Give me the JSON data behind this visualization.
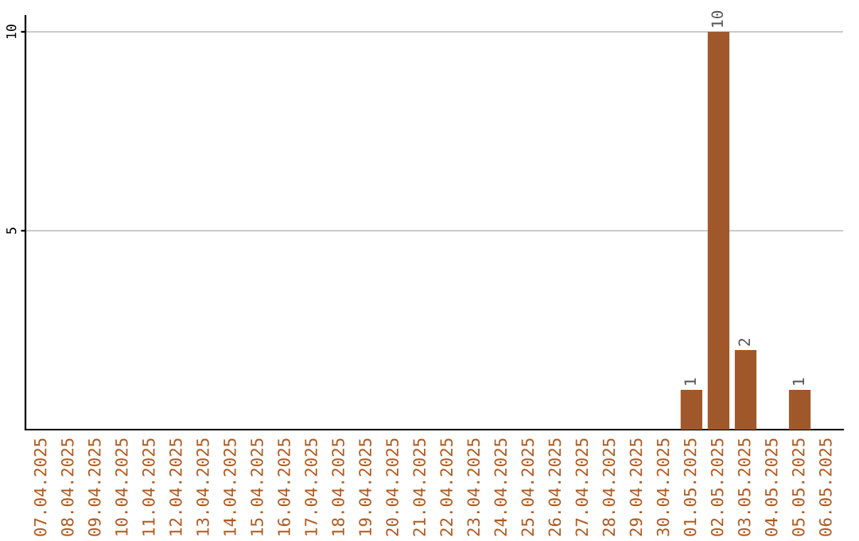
{
  "chart_data": {
    "type": "bar",
    "categories": [
      "07.04.2025",
      "08.04.2025",
      "09.04.2025",
      "10.04.2025",
      "11.04.2025",
      "12.04.2025",
      "13.04.2025",
      "14.04.2025",
      "15.04.2025",
      "16.04.2025",
      "17.04.2025",
      "18.04.2025",
      "19.04.2025",
      "20.04.2025",
      "21.04.2025",
      "22.04.2025",
      "23.04.2025",
      "24.04.2025",
      "25.04.2025",
      "26.04.2025",
      "27.04.2025",
      "28.04.2025",
      "29.04.2025",
      "30.04.2025",
      "01.05.2025",
      "02.05.2025",
      "03.05.2025",
      "04.05.2025",
      "05.05.2025",
      "06.05.2025"
    ],
    "values": [
      0,
      0,
      0,
      0,
      0,
      0,
      0,
      0,
      0,
      0,
      0,
      0,
      0,
      0,
      0,
      0,
      0,
      0,
      0,
      0,
      0,
      0,
      0,
      0,
      1,
      10,
      2,
      0,
      1,
      0
    ],
    "value_labels": [
      null,
      null,
      null,
      null,
      null,
      null,
      null,
      null,
      null,
      null,
      null,
      null,
      null,
      null,
      null,
      null,
      null,
      null,
      null,
      null,
      null,
      null,
      null,
      null,
      "1",
      "10",
      "2",
      null,
      "1",
      null
    ],
    "color": "#a0582a",
    "ylim": [
      0,
      10.4
    ],
    "yticks": [
      5,
      10
    ],
    "grid": "y"
  }
}
